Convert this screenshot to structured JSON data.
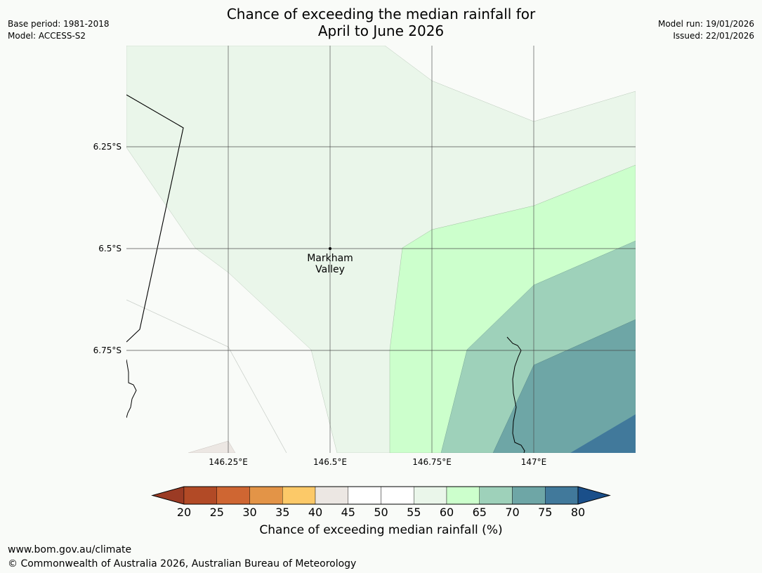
{
  "title": {
    "line1": "Chance of exceeding the median rainfall for",
    "line2": "April to June 2026"
  },
  "meta_left": {
    "base_period": "Base period: 1981-2018",
    "model": "Model: ACCESS-S2"
  },
  "meta_right": {
    "model_run": "Model run: 19/01/2026",
    "issued": "Issued: 22/01/2026"
  },
  "map": {
    "lat_labels": [
      "6.25°S",
      "6.5°S",
      "6.75°S"
    ],
    "lon_labels": [
      "146.25°E",
      "146.5°E",
      "146.75°E",
      "147°E"
    ],
    "place": {
      "name_line1": "Markham",
      "name_line2": "Valley"
    }
  },
  "colorbar": {
    "ticks": [
      "20",
      "25",
      "30",
      "35",
      "40",
      "45",
      "50",
      "55",
      "60",
      "65",
      "70",
      "75",
      "80"
    ],
    "colors": [
      "#9b3b24",
      "#b24a26",
      "#cf6632",
      "#e39447",
      "#fcc968",
      "#ece7e3",
      "#ffffff",
      "#ffffff",
      "#eaf6ea",
      "#ccffcc",
      "#9ed1ba",
      "#6ea6a6",
      "#41799b",
      "#1a4f8a"
    ],
    "label": "Chance of exceeding median rainfall (%)"
  },
  "footer": {
    "url": "www.bom.gov.au/climate",
    "copyright": "© Commonwealth of Australia 2026, Australian Bureau of Meteorology"
  }
}
